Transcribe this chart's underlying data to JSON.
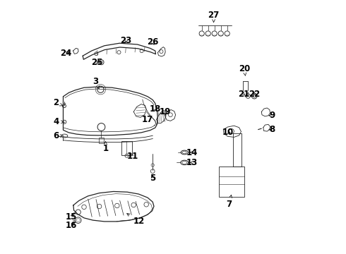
{
  "background": "#f0f0f0",
  "line_color": "#222222",
  "font_size": 8.5,
  "labels": {
    "1": [
      0.235,
      0.415,
      0.235,
      0.445
    ],
    "2": [
      0.04,
      0.595,
      0.075,
      0.58
    ],
    "3": [
      0.195,
      0.68,
      0.21,
      0.648
    ],
    "4": [
      0.04,
      0.52,
      0.073,
      0.52
    ],
    "5": [
      0.42,
      0.3,
      0.42,
      0.32
    ],
    "6": [
      0.04,
      0.465,
      0.07,
      0.465
    ],
    "7": [
      0.72,
      0.195,
      0.73,
      0.235
    ],
    "8": [
      0.89,
      0.49,
      0.875,
      0.49
    ],
    "9": [
      0.89,
      0.545,
      0.875,
      0.545
    ],
    "10": [
      0.715,
      0.48,
      0.735,
      0.475
    ],
    "11": [
      0.34,
      0.385,
      0.33,
      0.405
    ],
    "12": [
      0.365,
      0.13,
      0.31,
      0.165
    ],
    "13": [
      0.575,
      0.36,
      0.558,
      0.36
    ],
    "14": [
      0.575,
      0.4,
      0.558,
      0.4
    ],
    "15": [
      0.1,
      0.145,
      0.115,
      0.165
    ],
    "16": [
      0.1,
      0.112,
      0.12,
      0.13
    ],
    "17": [
      0.4,
      0.53,
      0.415,
      0.53
    ],
    "18": [
      0.43,
      0.57,
      0.44,
      0.555
    ],
    "19": [
      0.47,
      0.56,
      0.468,
      0.545
    ],
    "20": [
      0.78,
      0.73,
      0.785,
      0.7
    ],
    "21": [
      0.778,
      0.63,
      0.79,
      0.62
    ],
    "22": [
      0.82,
      0.63,
      0.808,
      0.62
    ],
    "23": [
      0.315,
      0.84,
      0.31,
      0.823
    ],
    "24": [
      0.08,
      0.79,
      0.1,
      0.8
    ],
    "25": [
      0.2,
      0.755,
      0.218,
      0.755
    ],
    "26": [
      0.42,
      0.835,
      0.43,
      0.815
    ],
    "27": [
      0.66,
      0.94,
      0.66,
      0.91
    ]
  }
}
